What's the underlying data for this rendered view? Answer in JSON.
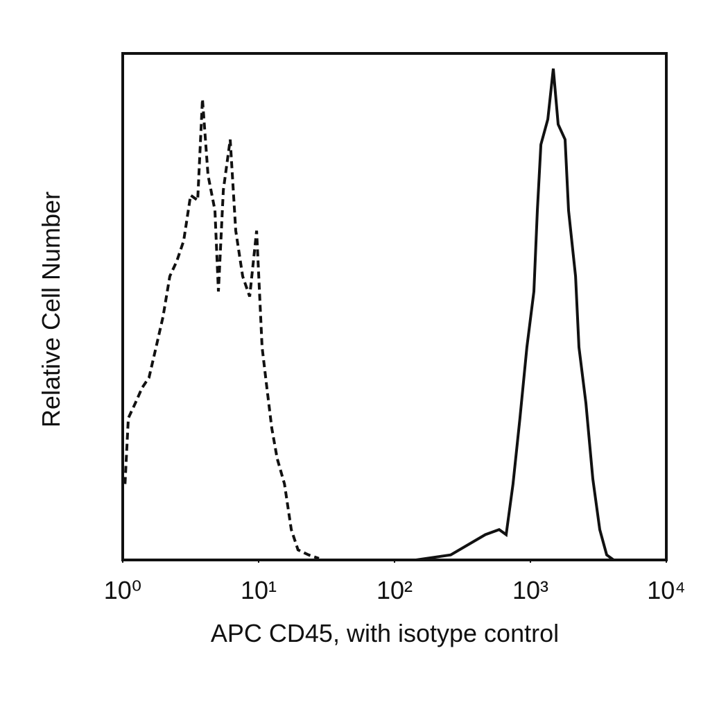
{
  "chart_data": {
    "type": "line",
    "x_label": "APC CD45, with isotype control",
    "y_label": "Relative Cell Number",
    "xscale": "log",
    "xlim": [
      1,
      10000
    ],
    "xticks": [
      {
        "value": 1,
        "label": "10⁰"
      },
      {
        "value": 10,
        "label": "10¹"
      },
      {
        "value": 100,
        "label": "10²"
      },
      {
        "value": 1000,
        "label": "10³"
      },
      {
        "value": 10000,
        "label": "10⁴"
      }
    ],
    "ylim": [
      0,
      100
    ],
    "series": [
      {
        "color": "#111111",
        "line_style": "dashed",
        "x": [
          1.04,
          1.1,
          1.24,
          1.39,
          1.56,
          1.76,
          1.98,
          2.22,
          2.5,
          2.81,
          3.16,
          3.56,
          3.86,
          4.24,
          4.77,
          5.06,
          5.5,
          6.18,
          6.79,
          7.63,
          8.59,
          9.66,
          10.6,
          11.5,
          12.5,
          13.7,
          15.5,
          17.4,
          19.5,
          23.3,
          27.8
        ],
        "values": [
          15,
          28,
          31,
          34,
          36,
          42,
          48,
          56,
          59,
          63,
          72,
          71,
          91,
          76,
          69,
          53,
          73,
          83,
          65,
          56,
          52,
          65,
          42,
          34,
          26,
          20,
          15,
          6,
          2,
          1,
          0.3
        ]
      },
      {
        "color": "#111111",
        "line_style": "solid",
        "x": [
          144,
          259,
          466,
          589,
          663,
          745,
          837,
          942,
          1060,
          1125,
          1194,
          1343,
          1473,
          1600,
          1799,
          1909,
          2148,
          2276,
          2560,
          2877,
          3236,
          3639,
          4093
        ],
        "values": [
          0,
          1,
          5,
          6,
          5,
          15,
          28,
          42,
          53,
          69,
          82,
          87,
          97,
          86,
          83,
          69,
          56,
          42,
          31,
          16,
          6,
          1,
          0
        ]
      }
    ]
  }
}
